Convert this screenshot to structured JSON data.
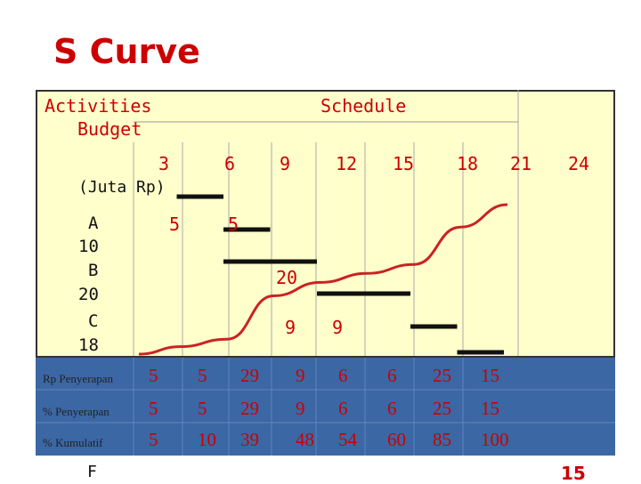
{
  "title": "S  Curve",
  "header": {
    "activities": "Activities",
    "budget": "Budget",
    "schedule": "Schedule",
    "unit": "(Juta Rp)"
  },
  "activities": [
    {
      "name": "A",
      "budget": "10"
    },
    {
      "name": "B",
      "budget": "20"
    },
    {
      "name": "C",
      "budget": "18"
    }
  ],
  "chart_data": {
    "type": "line",
    "x_ticks": [
      "3",
      "6",
      "9",
      "12",
      "15",
      "18",
      "21",
      "24"
    ],
    "bar_labels": [
      "5",
      "5",
      "20",
      "9",
      "9"
    ],
    "gantt_bars": [
      {
        "start": 3,
        "end": 6
      },
      {
        "start": 6,
        "end": 9
      },
      {
        "start": 6,
        "end": 12
      },
      {
        "start": 12,
        "end": 18
      },
      {
        "start": 18,
        "end": 21
      },
      {
        "start": 21,
        "end": 24
      }
    ],
    "cumulative": [
      0,
      5,
      10,
      39,
      48,
      54,
      60,
      85,
      100
    ],
    "rows": [
      {
        "label": "Rp Penyerapan",
        "values": [
          "5",
          "5",
          "29",
          "9",
          "6",
          "6",
          "25",
          "15"
        ]
      },
      {
        "label": "% Penyerapan",
        "values": [
          "5",
          "5",
          "29",
          "9",
          "6",
          "6",
          "25",
          "15"
        ]
      },
      {
        "label": "% Kumulatif",
        "values": [
          "5",
          "10",
          "39",
          "48",
          "54",
          "60",
          "85",
          "100"
        ]
      }
    ]
  },
  "footer": {
    "left": "F",
    "page": "15"
  },
  "colors": {
    "title": "#cc0000",
    "panel": "#ffffcc",
    "table": "#3b67a4",
    "curve": "#cc2222",
    "bar": "#111111"
  }
}
